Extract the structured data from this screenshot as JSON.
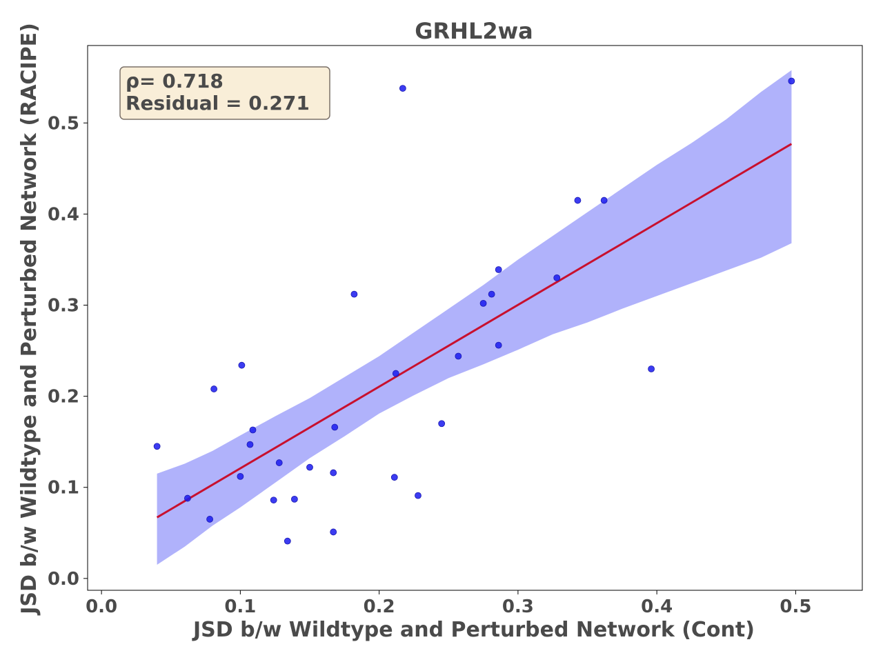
{
  "chart_data": {
    "type": "scatter",
    "title": "GRHL2wa",
    "xlabel": "JSD b/w Wildtype and Perturbed Network (Cont)",
    "ylabel": "JSD b/w Wildtype and Perturbed Network (RACIPE)",
    "xlim": [
      -0.01,
      0.548
    ],
    "ylim": [
      -0.013,
      0.585
    ],
    "xticks": [
      "0.0",
      "0.1",
      "0.2",
      "0.3",
      "0.4",
      "0.5"
    ],
    "yticks": [
      "0.0",
      "0.1",
      "0.2",
      "0.3",
      "0.4",
      "0.5"
    ],
    "grid": false,
    "annotation": {
      "rho_text": "ρ= 0.718",
      "residual_text": "Residual = 0.271"
    },
    "colors": {
      "points": "#1a1aee",
      "fit_line": "#c8102e",
      "band": "#b0b2fb",
      "annotation_bg": "#f9eed8",
      "annotation_border": "#7a7068",
      "text": "#4a4a4a"
    },
    "points": [
      {
        "x": 0.04,
        "y": 0.145
      },
      {
        "x": 0.062,
        "y": 0.088
      },
      {
        "x": 0.078,
        "y": 0.065
      },
      {
        "x": 0.081,
        "y": 0.208
      },
      {
        "x": 0.1,
        "y": 0.112
      },
      {
        "x": 0.101,
        "y": 0.234
      },
      {
        "x": 0.107,
        "y": 0.147
      },
      {
        "x": 0.109,
        "y": 0.163
      },
      {
        "x": 0.124,
        "y": 0.086
      },
      {
        "x": 0.128,
        "y": 0.127
      },
      {
        "x": 0.134,
        "y": 0.041
      },
      {
        "x": 0.139,
        "y": 0.087
      },
      {
        "x": 0.15,
        "y": 0.122
      },
      {
        "x": 0.167,
        "y": 0.116
      },
      {
        "x": 0.167,
        "y": 0.051
      },
      {
        "x": 0.168,
        "y": 0.166
      },
      {
        "x": 0.182,
        "y": 0.312
      },
      {
        "x": 0.211,
        "y": 0.111
      },
      {
        "x": 0.212,
        "y": 0.225
      },
      {
        "x": 0.217,
        "y": 0.538
      },
      {
        "x": 0.228,
        "y": 0.091
      },
      {
        "x": 0.245,
        "y": 0.17
      },
      {
        "x": 0.257,
        "y": 0.244
      },
      {
        "x": 0.275,
        "y": 0.302
      },
      {
        "x": 0.281,
        "y": 0.312
      },
      {
        "x": 0.286,
        "y": 0.339
      },
      {
        "x": 0.286,
        "y": 0.256
      },
      {
        "x": 0.328,
        "y": 0.33
      },
      {
        "x": 0.343,
        "y": 0.415
      },
      {
        "x": 0.362,
        "y": 0.415
      },
      {
        "x": 0.396,
        "y": 0.23
      },
      {
        "x": 0.497,
        "y": 0.546
      }
    ],
    "fit_line": [
      {
        "x": 0.04,
        "y": 0.067
      },
      {
        "x": 0.497,
        "y": 0.477
      }
    ],
    "band_upper": [
      {
        "x": 0.04,
        "y": 0.115
      },
      {
        "x": 0.06,
        "y": 0.126
      },
      {
        "x": 0.08,
        "y": 0.14
      },
      {
        "x": 0.1,
        "y": 0.157
      },
      {
        "x": 0.125,
        "y": 0.178
      },
      {
        "x": 0.15,
        "y": 0.198
      },
      {
        "x": 0.175,
        "y": 0.221
      },
      {
        "x": 0.2,
        "y": 0.244
      },
      {
        "x": 0.225,
        "y": 0.27
      },
      {
        "x": 0.25,
        "y": 0.296
      },
      {
        "x": 0.275,
        "y": 0.322
      },
      {
        "x": 0.3,
        "y": 0.35
      },
      {
        "x": 0.325,
        "y": 0.376
      },
      {
        "x": 0.35,
        "y": 0.402
      },
      {
        "x": 0.375,
        "y": 0.428
      },
      {
        "x": 0.4,
        "y": 0.454
      },
      {
        "x": 0.425,
        "y": 0.478
      },
      {
        "x": 0.45,
        "y": 0.504
      },
      {
        "x": 0.475,
        "y": 0.534
      },
      {
        "x": 0.497,
        "y": 0.558
      }
    ],
    "band_lower": [
      {
        "x": 0.04,
        "y": 0.015
      },
      {
        "x": 0.06,
        "y": 0.035
      },
      {
        "x": 0.08,
        "y": 0.058
      },
      {
        "x": 0.1,
        "y": 0.078
      },
      {
        "x": 0.125,
        "y": 0.105
      },
      {
        "x": 0.15,
        "y": 0.132
      },
      {
        "x": 0.175,
        "y": 0.156
      },
      {
        "x": 0.2,
        "y": 0.181
      },
      {
        "x": 0.225,
        "y": 0.201
      },
      {
        "x": 0.25,
        "y": 0.22
      },
      {
        "x": 0.275,
        "y": 0.235
      },
      {
        "x": 0.3,
        "y": 0.251
      },
      {
        "x": 0.325,
        "y": 0.268
      },
      {
        "x": 0.35,
        "y": 0.281
      },
      {
        "x": 0.375,
        "y": 0.296
      },
      {
        "x": 0.4,
        "y": 0.31
      },
      {
        "x": 0.425,
        "y": 0.324
      },
      {
        "x": 0.45,
        "y": 0.338
      },
      {
        "x": 0.475,
        "y": 0.352
      },
      {
        "x": 0.497,
        "y": 0.368
      }
    ]
  }
}
